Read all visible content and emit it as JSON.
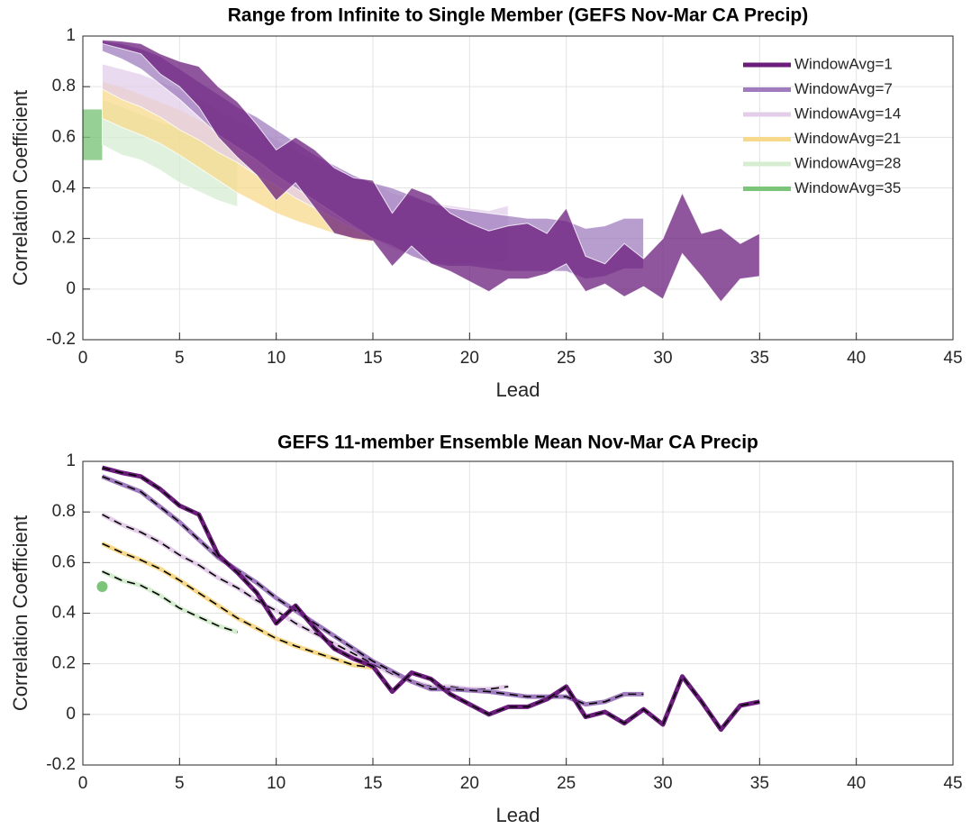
{
  "chart_data": [
    {
      "type": "band",
      "title": "Range from Infinite to Single Member (GEFS Nov-Mar CA Precip)",
      "xlabel": "Lead",
      "ylabel": "Correlation Coefficient",
      "xlim": [
        0,
        45
      ],
      "ylim": [
        -0.2,
        1
      ],
      "xticks": [
        0,
        5,
        10,
        15,
        20,
        25,
        30,
        35,
        40,
        45
      ],
      "yticks": [
        -0.2,
        0,
        0.2,
        0.4,
        0.6,
        0.8,
        1
      ],
      "grid": true,
      "legend": "top-right",
      "series": [
        {
          "name": "WindowAvg=1",
          "color": "#6b1d7c",
          "x": [
            1,
            2,
            3,
            4,
            5,
            6,
            7,
            8,
            9,
            10,
            11,
            12,
            13,
            14,
            15,
            16,
            17,
            18,
            19,
            20,
            21,
            22,
            23,
            24,
            25,
            26,
            27,
            28,
            29,
            30,
            31,
            32,
            33,
            34,
            35
          ],
          "upper": [
            0.985,
            0.98,
            0.97,
            0.93,
            0.9,
            0.88,
            0.8,
            0.74,
            0.65,
            0.55,
            0.6,
            0.55,
            0.48,
            0.44,
            0.43,
            0.3,
            0.4,
            0.37,
            0.3,
            0.26,
            0.23,
            0.25,
            0.26,
            0.22,
            0.32,
            0.13,
            0.1,
            0.18,
            0.12,
            0.2,
            0.38,
            0.22,
            0.24,
            0.18,
            0.22
          ],
          "lower": [
            0.97,
            0.95,
            0.93,
            0.85,
            0.8,
            0.72,
            0.6,
            0.52,
            0.45,
            0.35,
            0.42,
            0.32,
            0.22,
            0.2,
            0.19,
            0.09,
            0.17,
            0.1,
            0.07,
            0.03,
            -0.01,
            0.04,
            0.04,
            0.06,
            0.1,
            -0.01,
            0.02,
            -0.03,
            0.01,
            -0.04,
            0.14,
            0.05,
            -0.05,
            0.04,
            0.05
          ]
        },
        {
          "name": "WindowAvg=7",
          "color": "#a07cbf",
          "x": [
            1,
            2,
            3,
            4,
            5,
            6,
            7,
            8,
            9,
            10,
            11,
            12,
            13,
            14,
            15,
            16,
            17,
            18,
            19,
            20,
            21,
            22,
            23,
            24,
            25,
            26,
            27,
            28,
            29
          ],
          "upper": [
            0.98,
            0.97,
            0.95,
            0.92,
            0.87,
            0.82,
            0.77,
            0.72,
            0.68,
            0.63,
            0.58,
            0.53,
            0.49,
            0.45,
            0.42,
            0.4,
            0.37,
            0.34,
            0.32,
            0.31,
            0.3,
            0.29,
            0.28,
            0.28,
            0.27,
            0.24,
            0.25,
            0.28,
            0.28
          ],
          "lower": [
            0.94,
            0.91,
            0.87,
            0.81,
            0.75,
            0.68,
            0.61,
            0.56,
            0.51,
            0.45,
            0.4,
            0.35,
            0.3,
            0.25,
            0.2,
            0.17,
            0.13,
            0.1,
            0.09,
            0.09,
            0.08,
            0.07,
            0.07,
            0.07,
            0.07,
            0.04,
            0.05,
            0.08,
            0.08
          ]
        },
        {
          "name": "WindowAvg=14",
          "color": "#e3cde9",
          "x": [
            1,
            2,
            3,
            4,
            5,
            6,
            7,
            8,
            9,
            10,
            11,
            12,
            13,
            14,
            15,
            16,
            17,
            18,
            19,
            20,
            21,
            22
          ],
          "upper": [
            0.89,
            0.87,
            0.85,
            0.82,
            0.79,
            0.75,
            0.71,
            0.67,
            0.63,
            0.59,
            0.55,
            0.51,
            0.48,
            0.45,
            0.42,
            0.38,
            0.36,
            0.34,
            0.33,
            0.32,
            0.31,
            0.33
          ],
          "lower": [
            0.79,
            0.75,
            0.72,
            0.68,
            0.63,
            0.59,
            0.54,
            0.5,
            0.45,
            0.41,
            0.36,
            0.32,
            0.28,
            0.24,
            0.2,
            0.16,
            0.13,
            0.11,
            0.1,
            0.1,
            0.1,
            0.11
          ]
        },
        {
          "name": "WindowAvg=21",
          "color": "#f7d98b",
          "x": [
            1,
            2,
            3,
            4,
            5,
            6,
            7,
            8,
            9,
            10,
            11,
            12,
            13,
            14,
            15
          ],
          "upper": [
            0.82,
            0.8,
            0.77,
            0.74,
            0.71,
            0.67,
            0.63,
            0.59,
            0.56,
            0.53,
            0.5,
            0.48,
            0.46,
            0.44,
            0.43
          ],
          "lower": [
            0.675,
            0.64,
            0.61,
            0.575,
            0.53,
            0.48,
            0.43,
            0.38,
            0.34,
            0.3,
            0.27,
            0.245,
            0.22,
            0.195,
            0.185
          ]
        },
        {
          "name": "WindowAvg=28",
          "color": "#d6edd1",
          "x": [
            1,
            2,
            3,
            4,
            5,
            6,
            7,
            8
          ],
          "upper": [
            0.75,
            0.72,
            0.69,
            0.66,
            0.64,
            0.61,
            0.59,
            0.57
          ],
          "lower": [
            0.57,
            0.53,
            0.51,
            0.47,
            0.42,
            0.385,
            0.35,
            0.325
          ]
        },
        {
          "name": "WindowAvg=35",
          "color": "#7cc47a",
          "x": [
            1
          ],
          "upper": [
            0.71
          ],
          "lower": [
            0.51
          ]
        }
      ]
    },
    {
      "type": "line",
      "title": "GEFS 11-member Ensemble Mean Nov-Mar CA Precip",
      "xlabel": "Lead",
      "ylabel": "Correlation Coefficient",
      "xlim": [
        0,
        45
      ],
      "ylim": [
        -0.2,
        1
      ],
      "xticks": [
        0,
        5,
        10,
        15,
        20,
        25,
        30,
        35,
        40,
        45
      ],
      "yticks": [
        -0.2,
        0,
        0.2,
        0.4,
        0.6,
        0.8,
        1
      ],
      "grid": true,
      "series": [
        {
          "color": "#6b1d7c",
          "x": [
            1,
            2,
            3,
            4,
            5,
            6,
            7,
            8,
            9,
            10,
            11,
            12,
            13,
            14,
            15,
            16,
            17,
            18,
            19,
            20,
            21,
            22,
            23,
            24,
            25,
            26,
            27,
            28,
            29,
            30,
            31,
            32,
            33,
            34,
            35
          ],
          "values": [
            0.975,
            0.955,
            0.94,
            0.89,
            0.825,
            0.79,
            0.63,
            0.56,
            0.48,
            0.36,
            0.43,
            0.34,
            0.26,
            0.22,
            0.19,
            0.09,
            0.165,
            0.14,
            0.08,
            0.04,
            0.0,
            0.03,
            0.03,
            0.06,
            0.11,
            -0.01,
            0.01,
            -0.035,
            0.02,
            -0.04,
            0.15,
            0.05,
            -0.06,
            0.035,
            0.05
          ]
        },
        {
          "color": "#a07cbf",
          "x": [
            1,
            2,
            3,
            4,
            5,
            6,
            7,
            8,
            9,
            10,
            11,
            12,
            13,
            14,
            15,
            16,
            17,
            18,
            19,
            20,
            21,
            22,
            23,
            24,
            25,
            26,
            27,
            28,
            29
          ],
          "values": [
            0.94,
            0.91,
            0.88,
            0.82,
            0.76,
            0.69,
            0.62,
            0.57,
            0.52,
            0.46,
            0.41,
            0.36,
            0.31,
            0.26,
            0.21,
            0.17,
            0.13,
            0.1,
            0.1,
            0.095,
            0.09,
            0.08,
            0.07,
            0.07,
            0.07,
            0.04,
            0.05,
            0.08,
            0.08
          ]
        },
        {
          "color": "#e3cde9",
          "x": [
            1,
            2,
            3,
            4,
            5,
            6,
            7,
            8,
            9,
            10,
            11,
            12,
            13,
            14,
            15,
            16,
            17,
            18,
            19,
            20,
            21,
            22
          ],
          "values": [
            0.79,
            0.75,
            0.72,
            0.68,
            0.63,
            0.59,
            0.54,
            0.5,
            0.45,
            0.41,
            0.36,
            0.32,
            0.28,
            0.24,
            0.2,
            0.16,
            0.13,
            0.11,
            0.11,
            0.1,
            0.1,
            0.11
          ]
        },
        {
          "color": "#f7d98b",
          "x": [
            1,
            2,
            3,
            4,
            5,
            6,
            7,
            8,
            9,
            10,
            11,
            12,
            13,
            14,
            15
          ],
          "values": [
            0.675,
            0.64,
            0.61,
            0.575,
            0.53,
            0.48,
            0.43,
            0.38,
            0.34,
            0.3,
            0.27,
            0.245,
            0.22,
            0.195,
            0.185
          ]
        },
        {
          "color": "#d6edd1",
          "x": [
            1,
            2,
            3,
            4,
            5,
            6,
            7,
            8
          ],
          "values": [
            0.565,
            0.53,
            0.51,
            0.47,
            0.42,
            0.385,
            0.35,
            0.325
          ]
        },
        {
          "color": "#7cc47a",
          "x": [
            1
          ],
          "values": [
            0.505
          ]
        }
      ]
    }
  ]
}
